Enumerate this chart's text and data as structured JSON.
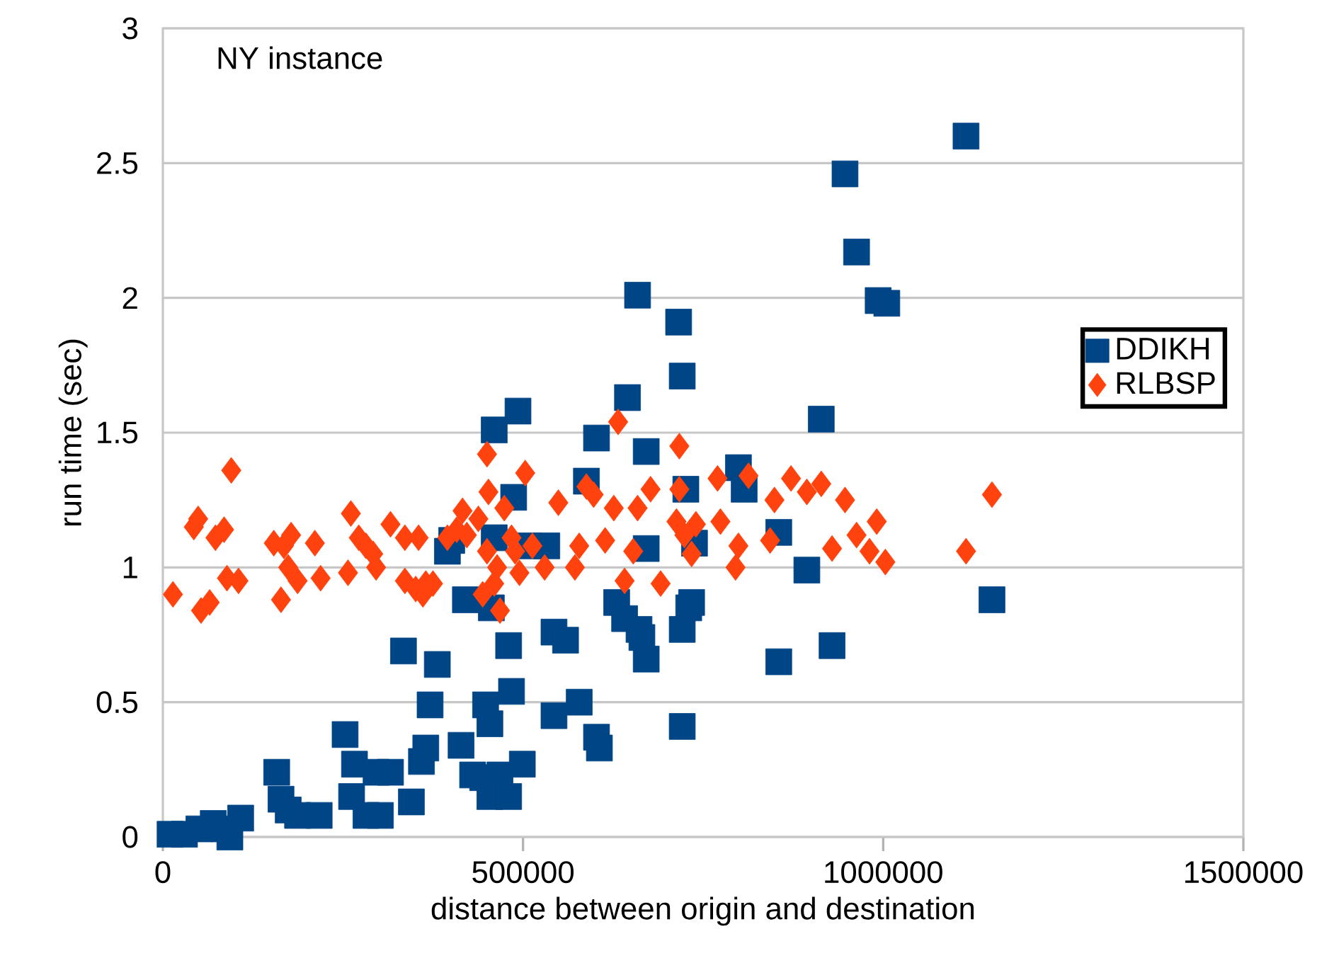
{
  "chart_data": {
    "type": "scatter",
    "xlabel": "distance between origin and destination",
    "ylabel": "run time (sec)",
    "annotations": [
      "NY instance"
    ],
    "xlim": [
      0,
      1500000
    ],
    "ylim": [
      0,
      3
    ],
    "xticks": [
      0,
      500000,
      1000000,
      1500000
    ],
    "yticks": [
      0,
      0.5,
      1,
      1.5,
      2,
      2.5,
      3
    ],
    "grid": "y",
    "legend": "right",
    "series": [
      {
        "name": "DDIKH",
        "color": "#004586",
        "marker": "square",
        "x": [
          10000,
          30000,
          50000,
          70000,
          85000,
          93000,
          108000,
          158000,
          164000,
          174000,
          187000,
          217000,
          253000,
          266000,
          262000,
          282000,
          296000,
          302000,
          316000,
          334000,
          345000,
          359000,
          365000,
          371000,
          381000,
          395000,
          401000,
          414000,
          420000,
          430000,
          444000,
          448000,
          454000,
          456000,
          460000,
          460000,
          454000,
          468000,
          480000,
          484000,
          480000,
          487000,
          493000,
          499000,
          507000,
          533000,
          543000,
          543000,
          559000,
          578000,
          588000,
          602000,
          602000,
          606000,
          630000,
          641000,
          645000,
          659000,
          661000,
          671000,
          671000,
          671000,
          665000,
          716000,
          721000,
          721000,
          721000,
          726000,
          730000,
          738000,
          734000,
          799000,
          807000,
          855000,
          855000,
          894000,
          914000,
          929000,
          947000,
          963000,
          993000,
          1005000,
          1115000,
          1151000
        ],
        "values": [
          0.01,
          0.01,
          0.03,
          0.05,
          0.03,
          0.0,
          0.07,
          0.24,
          0.14,
          0.1,
          0.08,
          0.08,
          0.38,
          0.27,
          0.15,
          0.08,
          0.24,
          0.08,
          0.24,
          0.69,
          0.13,
          0.28,
          0.33,
          0.49,
          0.64,
          1.06,
          1.1,
          0.34,
          0.88,
          0.23,
          0.22,
          0.49,
          0.42,
          0.85,
          1.11,
          1.51,
          0.15,
          0.23,
          0.15,
          0.54,
          0.71,
          1.26,
          1.58,
          0.27,
          1.08,
          1.08,
          0.45,
          0.76,
          0.73,
          0.5,
          1.32,
          0.37,
          1.48,
          0.33,
          0.87,
          0.81,
          1.63,
          2.01,
          0.77,
          1.43,
          1.07,
          0.66,
          0.74,
          1.91,
          1.71,
          0.41,
          0.77,
          1.29,
          0.85,
          1.09,
          0.87,
          1.37,
          1.29,
          1.13,
          0.65,
          0.99,
          1.55,
          0.71,
          2.46,
          2.17,
          1.99,
          1.98,
          2.6,
          0.88
        ]
      },
      {
        "name": "RLBSP",
        "color": "#ff420e",
        "marker": "diamond",
        "x": [
          14000,
          43000,
          49000,
          53000,
          65000,
          73000,
          85000,
          95000,
          89000,
          105000,
          154000,
          168000,
          164000,
          178000,
          174000,
          187000,
          211000,
          219000,
          261000,
          257000,
          272000,
          282000,
          292000,
          296000,
          316000,
          336000,
          336000,
          355000,
          351000,
          361000,
          365000,
          375000,
          395000,
          408000,
          416000,
          422000,
          438000,
          444000,
          450000,
          452000,
          450000,
          460000,
          464000,
          468000,
          474000,
          484000,
          489000,
          495000,
          503000,
          513000,
          530000,
          549000,
          572000,
          578000,
          588000,
          598000,
          614000,
          626000,
          632000,
          641000,
          653000,
          659000,
          677000,
          691000,
          713000,
          717000,
          717000,
          724000,
          734000,
          740000,
          770000,
          774000,
          795000,
          799000,
          813000,
          849000,
          843000,
          872000,
          894000,
          914000,
          929000,
          947000,
          963000,
          981000,
          991000,
          1003000,
          1115000,
          1151000
        ],
        "values": [
          0.9,
          1.15,
          1.18,
          0.84,
          0.87,
          1.11,
          1.14,
          1.36,
          0.96,
          0.95,
          1.09,
          1.08,
          0.88,
          1.12,
          1.0,
          0.95,
          1.09,
          0.96,
          1.2,
          0.98,
          1.11,
          1.08,
          1.05,
          1.0,
          1.16,
          1.11,
          0.95,
          1.11,
          0.92,
          0.9,
          0.94,
          0.94,
          1.11,
          1.14,
          1.21,
          1.12,
          1.18,
          0.9,
          1.06,
          1.28,
          1.42,
          0.94,
          1.0,
          0.84,
          1.22,
          1.11,
          1.06,
          0.98,
          1.35,
          1.08,
          1.0,
          1.24,
          1.0,
          1.08,
          1.3,
          1.27,
          1.1,
          1.22,
          1.54,
          0.95,
          1.06,
          1.22,
          1.29,
          0.94,
          1.17,
          1.45,
          1.29,
          1.12,
          1.05,
          1.16,
          1.33,
          1.17,
          1.0,
          1.08,
          1.34,
          1.25,
          1.1,
          1.33,
          1.28,
          1.31,
          1.07,
          1.25,
          1.12,
          1.06,
          1.17,
          1.02,
          1.06,
          1.27
        ]
      }
    ]
  }
}
